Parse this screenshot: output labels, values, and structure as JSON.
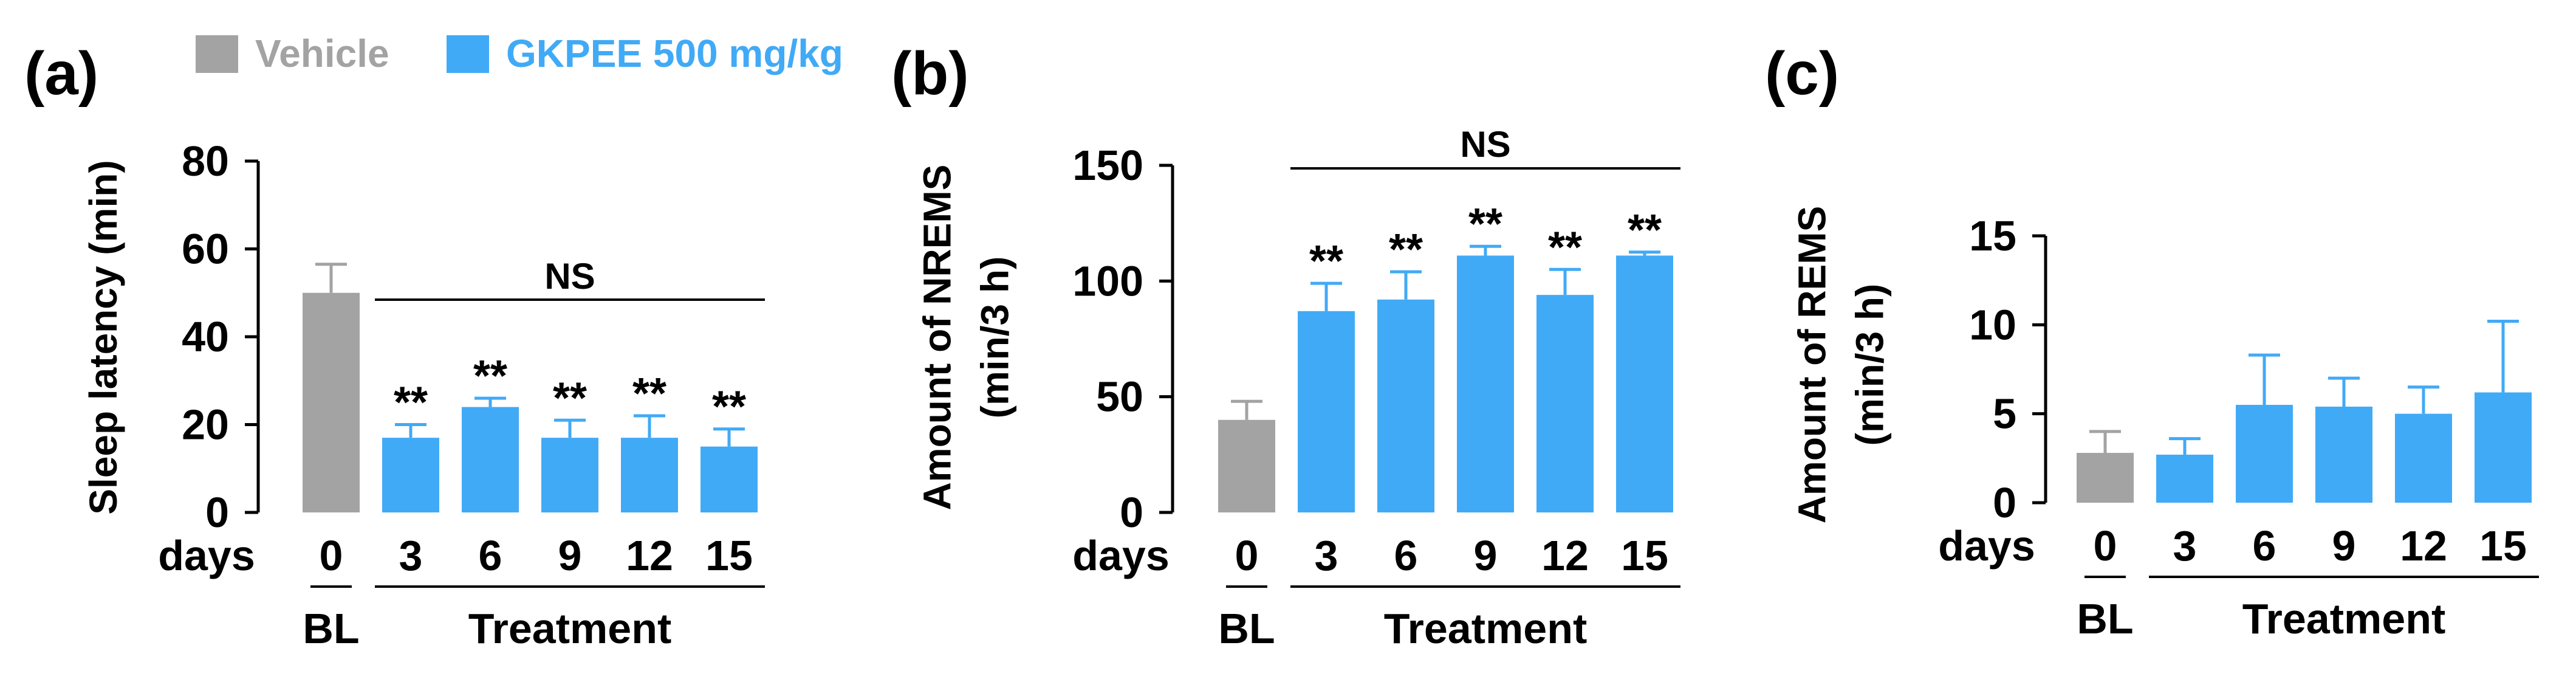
{
  "colors": {
    "vehicle": "#a3a3a3",
    "treatment": "#41aaf6",
    "axis": "#000000"
  },
  "legend": {
    "vehicle_label": "Vehicle",
    "treatment_label": "GKPEE 500 mg/kg"
  },
  "x_axis": {
    "days_label": "days",
    "days": [
      "0",
      "3",
      "6",
      "9",
      "12",
      "15"
    ],
    "bl_label": "BL",
    "treatment_label": "Treatment"
  },
  "chart_data": [
    {
      "panel": "(a)",
      "type": "bar",
      "ylabel": "Sleep latency (min)",
      "ylabel_lines": [
        "Sleep latency (min)"
      ],
      "ylim": [
        0,
        80
      ],
      "yticks": [
        "0",
        "20",
        "40",
        "60",
        "80"
      ],
      "categories": [
        "0",
        "3",
        "6",
        "9",
        "12",
        "15"
      ],
      "groups": [
        "Vehicle",
        "GKPEE 500 mg/kg",
        "GKPEE 500 mg/kg",
        "GKPEE 500 mg/kg",
        "GKPEE 500 mg/kg",
        "GKPEE 500 mg/kg"
      ],
      "values": [
        50,
        17,
        24,
        17,
        17,
        15
      ],
      "errors": [
        6.5,
        3,
        2,
        4,
        5,
        4
      ],
      "significance": [
        "",
        "**",
        "**",
        "**",
        "**",
        "**"
      ],
      "ns_label": "NS"
    },
    {
      "panel": "(b)",
      "type": "bar",
      "ylabel": "Amount of NREMS (min/3 h)",
      "ylabel_lines": [
        "Amount of NREMS",
        "(min/3 h)"
      ],
      "ylim": [
        0,
        150
      ],
      "yticks": [
        "0",
        "50",
        "100",
        "150"
      ],
      "categories": [
        "0",
        "3",
        "6",
        "9",
        "12",
        "15"
      ],
      "groups": [
        "Vehicle",
        "GKPEE 500 mg/kg",
        "GKPEE 500 mg/kg",
        "GKPEE 500 mg/kg",
        "GKPEE 500 mg/kg",
        "GKPEE 500 mg/kg"
      ],
      "values": [
        40,
        87,
        92,
        111,
        94,
        111
      ],
      "errors": [
        8,
        12,
        12,
        4,
        11,
        1.5
      ],
      "significance": [
        "",
        "**",
        "**",
        "**",
        "**",
        "**"
      ],
      "ns_label": "NS"
    },
    {
      "panel": "(c)",
      "type": "bar",
      "ylabel": "Amount of REMS (min/3 h)",
      "ylabel_lines": [
        "Amount of REMS",
        "(min/3 h)"
      ],
      "ylim": [
        0,
        15
      ],
      "yticks": [
        "0",
        "5",
        "10",
        "15"
      ],
      "categories": [
        "0",
        "3",
        "6",
        "9",
        "12",
        "15"
      ],
      "groups": [
        "Vehicle",
        "GKPEE 500 mg/kg",
        "GKPEE 500 mg/kg",
        "GKPEE 500 mg/kg",
        "GKPEE 500 mg/kg",
        "GKPEE 500 mg/kg"
      ],
      "values": [
        2.8,
        2.7,
        5.5,
        5.4,
        5.0,
        6.2
      ],
      "errors": [
        1.2,
        0.9,
        2.8,
        1.6,
        1.5,
        4.0
      ],
      "significance": [
        "",
        "",
        "",
        "",
        "",
        ""
      ],
      "ns_label": ""
    }
  ]
}
